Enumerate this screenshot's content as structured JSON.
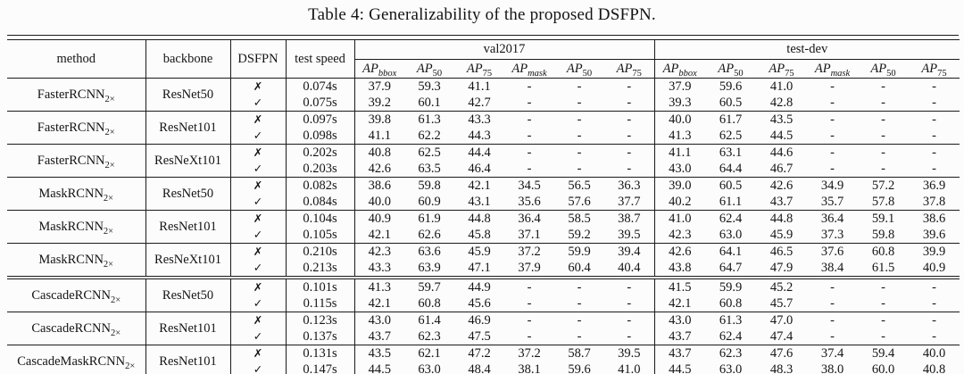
{
  "caption": "Table 4: Generalizability of the proposed DSFPN.",
  "colors": {
    "ink": "#141414",
    "background": "#fcfcfc"
  },
  "table": {
    "column_headers": {
      "method": "method",
      "backbone": "backbone",
      "dsfpn": "DSFPN",
      "test_speed": "test speed"
    },
    "group_headers": [
      "val2017",
      "test-dev"
    ],
    "metric_headers": [
      {
        "base": "AP",
        "sub": "bbox"
      },
      {
        "base": "AP",
        "sub": "50"
      },
      {
        "base": "AP",
        "sub": "75"
      },
      {
        "base": "AP",
        "sub": "mask"
      },
      {
        "base": "AP",
        "sub": "50"
      },
      {
        "base": "AP",
        "sub": "75"
      }
    ],
    "marks": {
      "cross": "✗",
      "check": "✓"
    },
    "blocks": [
      {
        "method": "FasterRCNN",
        "method_sub": "2×",
        "backbone": "ResNet50",
        "rows": [
          {
            "dsfpn": "cross",
            "speed": "0.074s",
            "val2017": [
              "37.9",
              "59.3",
              "41.1",
              "-",
              "-",
              "-"
            ],
            "test_dev": [
              "37.9",
              "59.6",
              "41.0",
              "-",
              "-",
              "-"
            ]
          },
          {
            "dsfpn": "check",
            "speed": "0.075s",
            "val2017": [
              "39.2",
              "60.1",
              "42.7",
              "-",
              "-",
              "-"
            ],
            "test_dev": [
              "39.3",
              "60.5",
              "42.8",
              "-",
              "-",
              "-"
            ]
          }
        ]
      },
      {
        "method": "FasterRCNN",
        "method_sub": "2×",
        "backbone": "ResNet101",
        "rows": [
          {
            "dsfpn": "cross",
            "speed": "0.097s",
            "val2017": [
              "39.8",
              "61.3",
              "43.3",
              "-",
              "-",
              "-"
            ],
            "test_dev": [
              "40.0",
              "61.7",
              "43.5",
              "-",
              "-",
              "-"
            ]
          },
          {
            "dsfpn": "check",
            "speed": "0.098s",
            "val2017": [
              "41.1",
              "62.2",
              "44.3",
              "-",
              "-",
              "-"
            ],
            "test_dev": [
              "41.3",
              "62.5",
              "44.5",
              "-",
              "-",
              "-"
            ]
          }
        ]
      },
      {
        "method": "FasterRCNN",
        "method_sub": "2×",
        "backbone": "ResNeXt101",
        "rows": [
          {
            "dsfpn": "cross",
            "speed": "0.202s",
            "val2017": [
              "40.8",
              "62.5",
              "44.4",
              "-",
              "-",
              "-"
            ],
            "test_dev": [
              "41.1",
              "63.1",
              "44.6",
              "-",
              "-",
              "-"
            ]
          },
          {
            "dsfpn": "check",
            "speed": "0.203s",
            "val2017": [
              "42.6",
              "63.5",
              "46.4",
              "-",
              "-",
              "-"
            ],
            "test_dev": [
              "43.0",
              "64.4",
              "46.7",
              "-",
              "-",
              "-"
            ]
          }
        ]
      },
      {
        "method": "MaskRCNN",
        "method_sub": "2×",
        "backbone": "ResNet50",
        "rows": [
          {
            "dsfpn": "cross",
            "speed": "0.082s",
            "val2017": [
              "38.6",
              "59.8",
              "42.1",
              "34.5",
              "56.5",
              "36.3"
            ],
            "test_dev": [
              "39.0",
              "60.5",
              "42.6",
              "34.9",
              "57.2",
              "36.9"
            ]
          },
          {
            "dsfpn": "check",
            "speed": "0.084s",
            "val2017": [
              "40.0",
              "60.9",
              "43.1",
              "35.6",
              "57.6",
              "37.7"
            ],
            "test_dev": [
              "40.2",
              "61.1",
              "43.7",
              "35.7",
              "57.8",
              "37.8"
            ]
          }
        ]
      },
      {
        "method": "MaskRCNN",
        "method_sub": "2×",
        "backbone": "ResNet101",
        "rows": [
          {
            "dsfpn": "cross",
            "speed": "0.104s",
            "val2017": [
              "40.9",
              "61.9",
              "44.8",
              "36.4",
              "58.5",
              "38.7"
            ],
            "test_dev": [
              "41.0",
              "62.4",
              "44.8",
              "36.4",
              "59.1",
              "38.6"
            ]
          },
          {
            "dsfpn": "check",
            "speed": "0.105s",
            "val2017": [
              "42.1",
              "62.6",
              "45.8",
              "37.1",
              "59.2",
              "39.5"
            ],
            "test_dev": [
              "42.3",
              "63.0",
              "45.9",
              "37.3",
              "59.8",
              "39.6"
            ]
          }
        ]
      },
      {
        "method": "MaskRCNN",
        "method_sub": "2×",
        "backbone": "ResNeXt101",
        "rows": [
          {
            "dsfpn": "cross",
            "speed": "0.210s",
            "val2017": [
              "42.3",
              "63.6",
              "45.9",
              "37.2",
              "59.9",
              "39.4"
            ],
            "test_dev": [
              "42.6",
              "64.1",
              "46.5",
              "37.6",
              "60.8",
              "39.9"
            ]
          },
          {
            "dsfpn": "check",
            "speed": "0.213s",
            "val2017": [
              "43.3",
              "63.9",
              "47.1",
              "37.9",
              "60.4",
              "40.4"
            ],
            "test_dev": [
              "43.8",
              "64.7",
              "47.9",
              "38.4",
              "61.5",
              "40.9"
            ]
          }
        ]
      },
      {
        "method": "CascadeRCNN",
        "method_sub": "2×",
        "backbone": "ResNet50",
        "double_rule_above": true,
        "rows": [
          {
            "dsfpn": "cross",
            "speed": "0.101s",
            "val2017": [
              "41.3",
              "59.7",
              "44.9",
              "-",
              "-",
              "-"
            ],
            "test_dev": [
              "41.5",
              "59.9",
              "45.2",
              "-",
              "-",
              "-"
            ]
          },
          {
            "dsfpn": "check",
            "speed": "0.115s",
            "val2017": [
              "42.1",
              "60.8",
              "45.6",
              "-",
              "-",
              "-"
            ],
            "test_dev": [
              "42.1",
              "60.8",
              "45.7",
              "-",
              "-",
              "-"
            ]
          }
        ]
      },
      {
        "method": "CascadeRCNN",
        "method_sub": "2×",
        "backbone": "ResNet101",
        "rows": [
          {
            "dsfpn": "cross",
            "speed": "0.123s",
            "val2017": [
              "43.0",
              "61.4",
              "46.9",
              "-",
              "-",
              "-"
            ],
            "test_dev": [
              "43.0",
              "61.3",
              "47.0",
              "-",
              "-",
              "-"
            ]
          },
          {
            "dsfpn": "check",
            "speed": "0.137s",
            "val2017": [
              "43.7",
              "62.3",
              "47.5",
              "-",
              "-",
              "-"
            ],
            "test_dev": [
              "43.7",
              "62.4",
              "47.4",
              "-",
              "-",
              "-"
            ]
          }
        ]
      },
      {
        "method": "CascadeMaskRCNN",
        "method_sub": "2×",
        "backbone": "ResNet101",
        "rows": [
          {
            "dsfpn": "cross",
            "speed": "0.131s",
            "val2017": [
              "43.5",
              "62.1",
              "47.2",
              "37.2",
              "58.7",
              "39.5"
            ],
            "test_dev": [
              "43.7",
              "62.3",
              "47.6",
              "37.4",
              "59.4",
              "40.0"
            ]
          },
          {
            "dsfpn": "check",
            "speed": "0.147s",
            "val2017": [
              "44.5",
              "63.0",
              "48.4",
              "38.1",
              "59.6",
              "41.0"
            ],
            "test_dev": [
              "44.5",
              "63.0",
              "48.3",
              "38.0",
              "60.0",
              "40.8"
            ]
          }
        ]
      }
    ]
  }
}
